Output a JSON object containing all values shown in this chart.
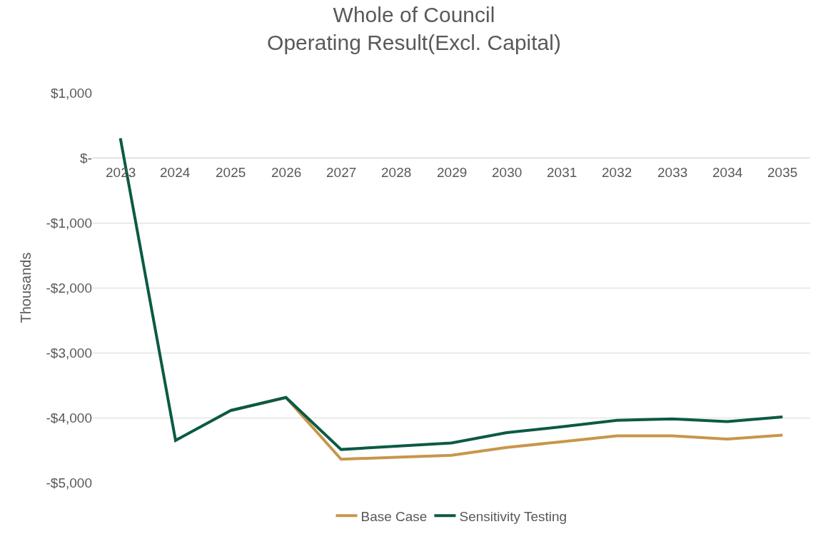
{
  "chart_data": {
    "type": "line",
    "title": "Whole of Council\nOperating Result(Excl. Capital)",
    "ylabel": "Thousands",
    "categories": [
      "2023",
      "2024",
      "2025",
      "2026",
      "2027",
      "2028",
      "2029",
      "2030",
      "2031",
      "2032",
      "2033",
      "2034",
      "2035"
    ],
    "series": [
      {
        "name": "Base Case",
        "color": "#c8964a",
        "values": [
          null,
          null,
          -3890,
          -3690,
          -4640,
          -4610,
          -4580,
          -4460,
          -4370,
          -4280,
          -4280,
          -4330,
          -4270
        ]
      },
      {
        "name": "Sensitivity Testing",
        "color": "#0b5a45",
        "values": [
          300,
          -4350,
          -3890,
          -3690,
          -4490,
          -4440,
          -4390,
          -4230,
          -4140,
          -4040,
          -4020,
          -4060,
          -3990
        ]
      }
    ],
    "ylim": [
      -5000,
      1000
    ],
    "yticks": [
      {
        "value": 1000,
        "label": "$1,000"
      },
      {
        "value": 0,
        "label": "$-"
      },
      {
        "value": -1000,
        "label": "-$1,000"
      },
      {
        "value": -2000,
        "label": "-$2,000"
      },
      {
        "value": -3000,
        "label": "-$3,000"
      },
      {
        "value": -4000,
        "label": "-$4,000"
      },
      {
        "value": -5000,
        "label": "-$5,000"
      }
    ],
    "grid": "y",
    "legend": "bottom",
    "marker": "none",
    "line_style": "solid"
  }
}
